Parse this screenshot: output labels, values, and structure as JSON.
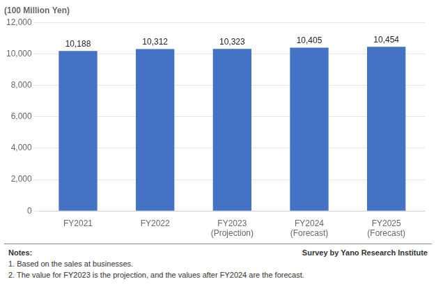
{
  "chart_data": {
    "type": "bar",
    "ylabel": "(100 Million Yen)",
    "categories": [
      "FY2021",
      "FY2022",
      "FY2023\n(Projection)",
      "FY2024\n(Forecast)",
      "FY2025\n(Forecast)"
    ],
    "values": [
      10188,
      10312,
      10323,
      10405,
      10454
    ],
    "value_labels": [
      "10,188",
      "10,312",
      "10,323",
      "10,405",
      "10,454"
    ],
    "data_labels": true,
    "color": "#4472C4",
    "ylim": [
      0,
      12000
    ],
    "yticks": [
      0,
      {
        "value": 2000,
        "label": "2,000"
      },
      {
        "value": 4000,
        "label": "4,000"
      },
      {
        "value": 6000,
        "label": "6,000"
      },
      {
        "value": 8000,
        "label": "8,000"
      },
      {
        "value": 10000,
        "label": "10,000"
      },
      {
        "value": 12000,
        "label": "12,000"
      }
    ],
    "grid": true,
    "notes": [
      "Notes:",
      "1. Based on the sales at businesses.",
      "2. The value for FY2023 is the projection, and the values after FY2024 are the forecast."
    ],
    "source": "Survey by Yano Research Institute"
  }
}
